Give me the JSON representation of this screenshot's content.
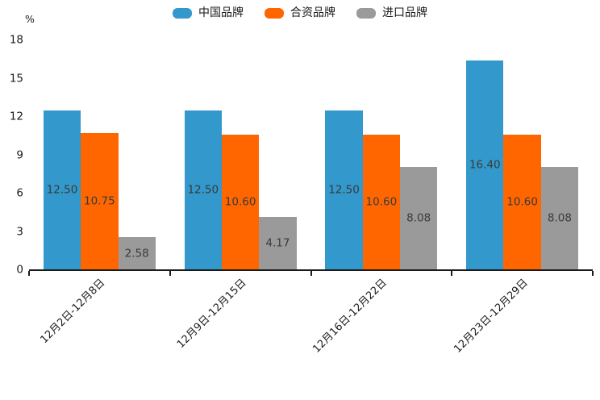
{
  "chart_data": {
    "type": "bar",
    "title": "",
    "unit_label": "%",
    "categories": [
      "12月2日-12月8日",
      "12月9日-12月15日",
      "12月16日-12月22日",
      "12月23日-12月29日"
    ],
    "series": [
      {
        "name": "中国品牌",
        "color": "#3398cb",
        "values": [
          12.5,
          12.5,
          12.5,
          16.4
        ]
      },
      {
        "name": "合资品牌",
        "color": "#ff6600",
        "values": [
          10.75,
          10.6,
          10.6,
          10.6
        ]
      },
      {
        "name": "进口品牌",
        "color": "#9a9a9a",
        "values": [
          2.58,
          4.17,
          8.08,
          8.08
        ]
      }
    ],
    "value_labels": [
      [
        "12.50",
        "10.75",
        "2.58"
      ],
      [
        "12.50",
        "10.60",
        "4.17"
      ],
      [
        "12.50",
        "10.60",
        "8.08"
      ],
      [
        "16.40",
        "10.60",
        "8.08"
      ]
    ],
    "ylim": [
      0,
      18
    ],
    "yticks": [
      0,
      3,
      6,
      9,
      12,
      15,
      18
    ],
    "legend_position": "top",
    "grid": false,
    "value_label_decimals": 2
  },
  "colors": {
    "axis": "#1a1a1a",
    "tick_label": "#1a1a1a",
    "value_label": "#3a3a3a",
    "background": "#ffffff"
  }
}
